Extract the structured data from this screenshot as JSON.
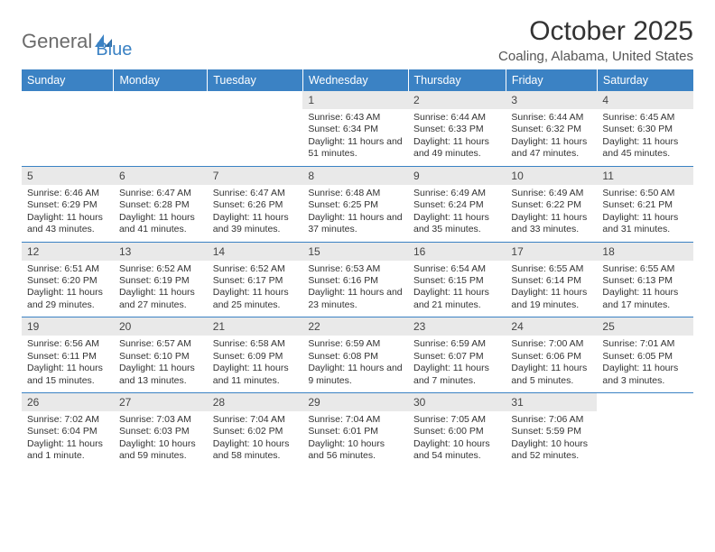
{
  "logo": {
    "text1": "General",
    "text2": "Blue"
  },
  "title": "October 2025",
  "location": "Coaling, Alabama, United States",
  "colors": {
    "header_bg": "#3b82c4",
    "header_text": "#ffffff",
    "daynum_bg": "#e9e9e9",
    "rule": "#3b82c4",
    "body_text": "#333333",
    "logo_gray": "#6b6b6b",
    "logo_blue": "#3b82c4"
  },
  "font": {
    "family": "Arial",
    "title_size": 30,
    "location_size": 15,
    "dow_size": 12.5,
    "daynum_size": 12,
    "body_size": 10.5
  },
  "dow": [
    "Sunday",
    "Monday",
    "Tuesday",
    "Wednesday",
    "Thursday",
    "Friday",
    "Saturday"
  ],
  "weeks": [
    [
      {
        "n": "",
        "sr": "",
        "ss": "",
        "dl": ""
      },
      {
        "n": "",
        "sr": "",
        "ss": "",
        "dl": ""
      },
      {
        "n": "",
        "sr": "",
        "ss": "",
        "dl": ""
      },
      {
        "n": "1",
        "sr": "Sunrise: 6:43 AM",
        "ss": "Sunset: 6:34 PM",
        "dl": "Daylight: 11 hours and 51 minutes."
      },
      {
        "n": "2",
        "sr": "Sunrise: 6:44 AM",
        "ss": "Sunset: 6:33 PM",
        "dl": "Daylight: 11 hours and 49 minutes."
      },
      {
        "n": "3",
        "sr": "Sunrise: 6:44 AM",
        "ss": "Sunset: 6:32 PM",
        "dl": "Daylight: 11 hours and 47 minutes."
      },
      {
        "n": "4",
        "sr": "Sunrise: 6:45 AM",
        "ss": "Sunset: 6:30 PM",
        "dl": "Daylight: 11 hours and 45 minutes."
      }
    ],
    [
      {
        "n": "5",
        "sr": "Sunrise: 6:46 AM",
        "ss": "Sunset: 6:29 PM",
        "dl": "Daylight: 11 hours and 43 minutes."
      },
      {
        "n": "6",
        "sr": "Sunrise: 6:47 AM",
        "ss": "Sunset: 6:28 PM",
        "dl": "Daylight: 11 hours and 41 minutes."
      },
      {
        "n": "7",
        "sr": "Sunrise: 6:47 AM",
        "ss": "Sunset: 6:26 PM",
        "dl": "Daylight: 11 hours and 39 minutes."
      },
      {
        "n": "8",
        "sr": "Sunrise: 6:48 AM",
        "ss": "Sunset: 6:25 PM",
        "dl": "Daylight: 11 hours and 37 minutes."
      },
      {
        "n": "9",
        "sr": "Sunrise: 6:49 AM",
        "ss": "Sunset: 6:24 PM",
        "dl": "Daylight: 11 hours and 35 minutes."
      },
      {
        "n": "10",
        "sr": "Sunrise: 6:49 AM",
        "ss": "Sunset: 6:22 PM",
        "dl": "Daylight: 11 hours and 33 minutes."
      },
      {
        "n": "11",
        "sr": "Sunrise: 6:50 AM",
        "ss": "Sunset: 6:21 PM",
        "dl": "Daylight: 11 hours and 31 minutes."
      }
    ],
    [
      {
        "n": "12",
        "sr": "Sunrise: 6:51 AM",
        "ss": "Sunset: 6:20 PM",
        "dl": "Daylight: 11 hours and 29 minutes."
      },
      {
        "n": "13",
        "sr": "Sunrise: 6:52 AM",
        "ss": "Sunset: 6:19 PM",
        "dl": "Daylight: 11 hours and 27 minutes."
      },
      {
        "n": "14",
        "sr": "Sunrise: 6:52 AM",
        "ss": "Sunset: 6:17 PM",
        "dl": "Daylight: 11 hours and 25 minutes."
      },
      {
        "n": "15",
        "sr": "Sunrise: 6:53 AM",
        "ss": "Sunset: 6:16 PM",
        "dl": "Daylight: 11 hours and 23 minutes."
      },
      {
        "n": "16",
        "sr": "Sunrise: 6:54 AM",
        "ss": "Sunset: 6:15 PM",
        "dl": "Daylight: 11 hours and 21 minutes."
      },
      {
        "n": "17",
        "sr": "Sunrise: 6:55 AM",
        "ss": "Sunset: 6:14 PM",
        "dl": "Daylight: 11 hours and 19 minutes."
      },
      {
        "n": "18",
        "sr": "Sunrise: 6:55 AM",
        "ss": "Sunset: 6:13 PM",
        "dl": "Daylight: 11 hours and 17 minutes."
      }
    ],
    [
      {
        "n": "19",
        "sr": "Sunrise: 6:56 AM",
        "ss": "Sunset: 6:11 PM",
        "dl": "Daylight: 11 hours and 15 minutes."
      },
      {
        "n": "20",
        "sr": "Sunrise: 6:57 AM",
        "ss": "Sunset: 6:10 PM",
        "dl": "Daylight: 11 hours and 13 minutes."
      },
      {
        "n": "21",
        "sr": "Sunrise: 6:58 AM",
        "ss": "Sunset: 6:09 PM",
        "dl": "Daylight: 11 hours and 11 minutes."
      },
      {
        "n": "22",
        "sr": "Sunrise: 6:59 AM",
        "ss": "Sunset: 6:08 PM",
        "dl": "Daylight: 11 hours and 9 minutes."
      },
      {
        "n": "23",
        "sr": "Sunrise: 6:59 AM",
        "ss": "Sunset: 6:07 PM",
        "dl": "Daylight: 11 hours and 7 minutes."
      },
      {
        "n": "24",
        "sr": "Sunrise: 7:00 AM",
        "ss": "Sunset: 6:06 PM",
        "dl": "Daylight: 11 hours and 5 minutes."
      },
      {
        "n": "25",
        "sr": "Sunrise: 7:01 AM",
        "ss": "Sunset: 6:05 PM",
        "dl": "Daylight: 11 hours and 3 minutes."
      }
    ],
    [
      {
        "n": "26",
        "sr": "Sunrise: 7:02 AM",
        "ss": "Sunset: 6:04 PM",
        "dl": "Daylight: 11 hours and 1 minute."
      },
      {
        "n": "27",
        "sr": "Sunrise: 7:03 AM",
        "ss": "Sunset: 6:03 PM",
        "dl": "Daylight: 10 hours and 59 minutes."
      },
      {
        "n": "28",
        "sr": "Sunrise: 7:04 AM",
        "ss": "Sunset: 6:02 PM",
        "dl": "Daylight: 10 hours and 58 minutes."
      },
      {
        "n": "29",
        "sr": "Sunrise: 7:04 AM",
        "ss": "Sunset: 6:01 PM",
        "dl": "Daylight: 10 hours and 56 minutes."
      },
      {
        "n": "30",
        "sr": "Sunrise: 7:05 AM",
        "ss": "Sunset: 6:00 PM",
        "dl": "Daylight: 10 hours and 54 minutes."
      },
      {
        "n": "31",
        "sr": "Sunrise: 7:06 AM",
        "ss": "Sunset: 5:59 PM",
        "dl": "Daylight: 10 hours and 52 minutes."
      },
      {
        "n": "",
        "sr": "",
        "ss": "",
        "dl": ""
      }
    ]
  ]
}
